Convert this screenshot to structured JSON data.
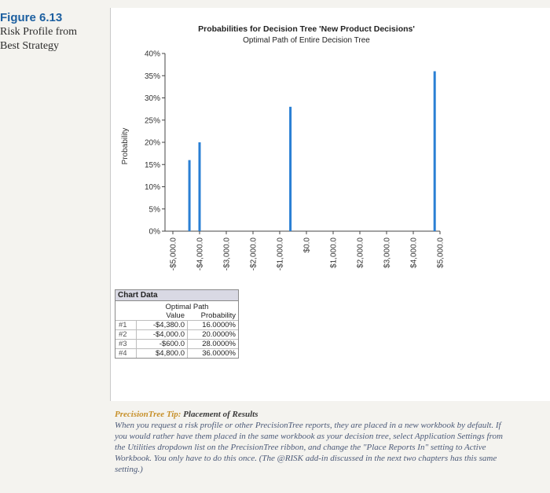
{
  "figure": {
    "number": "Figure 6.13",
    "caption_line1": "Risk Profile from",
    "caption_line2": "Best Strategy"
  },
  "chart_data": {
    "type": "bar",
    "title": "Probabilities for Decision Tree 'New Product Decisions'",
    "subtitle": "Optimal Path of Entire Decision Tree",
    "ylabel": "Probability",
    "xlabel": "",
    "ylim": [
      0,
      40
    ],
    "yticks": [
      0,
      5,
      10,
      15,
      20,
      25,
      30,
      35,
      40
    ],
    "ytick_labels": [
      "0%",
      "5%",
      "10%",
      "15%",
      "20%",
      "25%",
      "30%",
      "35%",
      "40%"
    ],
    "xlim": [
      -5000,
      5000
    ],
    "xticks": [
      -5000,
      -4000,
      -3000,
      -2000,
      -1000,
      0,
      1000,
      2000,
      3000,
      4000,
      5000
    ],
    "xtick_labels": [
      "-$5,000.0",
      "-$4,000.0",
      "-$3,000.0",
      "-$2,000.0",
      "-$1,000.0",
      "$0.0",
      "$1,000.0",
      "$2,000.0",
      "$3,000.0",
      "$4,000.0",
      "$5,000.0"
    ],
    "points": [
      {
        "x": -4380,
        "y": 16
      },
      {
        "x": -4000,
        "y": 20
      },
      {
        "x": -600,
        "y": 28
      },
      {
        "x": 4800,
        "y": 36
      }
    ],
    "bar_color": "#2a7fd4",
    "grid": false
  },
  "table": {
    "title": "Chart Data",
    "series_label": "Optimal Path",
    "col_value": "Value",
    "col_prob": "Probability",
    "rows": [
      {
        "idx": "#1",
        "value": "-$4,380.0",
        "prob": "16.0000%"
      },
      {
        "idx": "#2",
        "value": "-$4,000.0",
        "prob": "20.0000%"
      },
      {
        "idx": "#3",
        "value": "-$600.0",
        "prob": "28.0000%"
      },
      {
        "idx": "#4",
        "value": "$4,800.0",
        "prob": "36.0000%"
      }
    ]
  },
  "tip": {
    "heading_a": "PrecisionTree Tip:",
    "heading_b": "Placement of Results",
    "body": "When you request a risk profile or other PrecisionTree reports, they are placed in a new workbook by default. If you would rather have them placed in the same workbook as your decision tree, select Application Settings from the Utilities dropdown list on the PrecisionTree ribbon, and change the \"Place Reports In\" setting to Active Workbook. You only have to do this once. (The @RISK add-in discussed in the next two chapters has this same setting.)"
  }
}
